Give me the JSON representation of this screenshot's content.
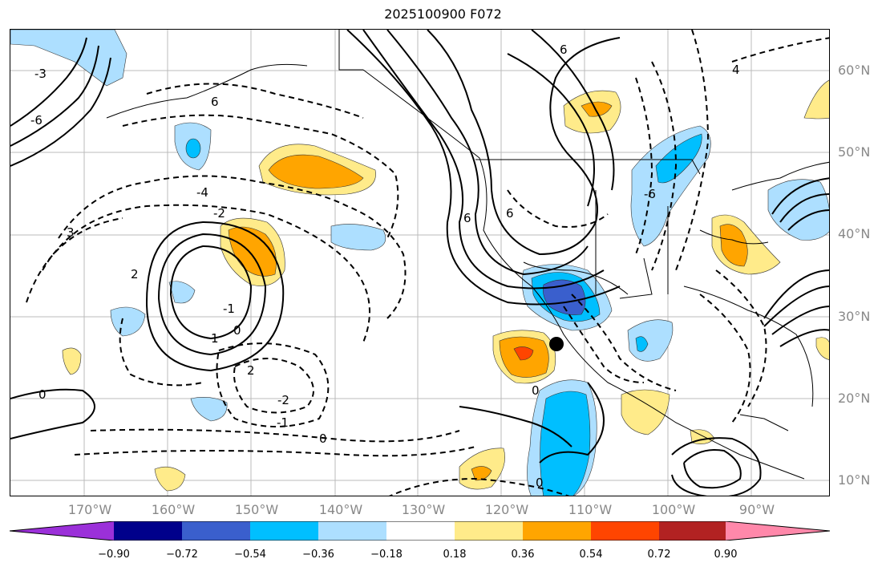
{
  "title": "2025100900 F072",
  "lat_labels": [
    "60°N",
    "50°N",
    "40°N",
    "30°N",
    "20°N",
    "10°N"
  ],
  "lon_labels": [
    "170°W",
    "160°W",
    "150°W",
    "140°W",
    "130°W",
    "120°W",
    "110°W",
    "100°W",
    "90°W"
  ],
  "contour_labels": [
    "-4",
    "-2",
    "-2",
    "-1",
    "-1",
    "0",
    "0",
    "0",
    "0",
    "0",
    "1",
    "2",
    "2",
    "-3",
    "3",
    "6",
    "6",
    "-6",
    "6",
    "4",
    "-6",
    "6"
  ],
  "colorbar": {
    "ticks": [
      "−0.90",
      "−0.72",
      "−0.54",
      "−0.36",
      "−0.18",
      "0.18",
      "0.36",
      "0.54",
      "0.72",
      "0.90"
    ],
    "colors": [
      "#9b30d9",
      "#00008b",
      "#3a5fcd",
      "#00bfff",
      "#addfff",
      "#ffffff",
      "#ffeb8a",
      "#ffa500",
      "#ff4500",
      "#b22222",
      "#ff88aa"
    ]
  },
  "marker": "black hexagon"
}
